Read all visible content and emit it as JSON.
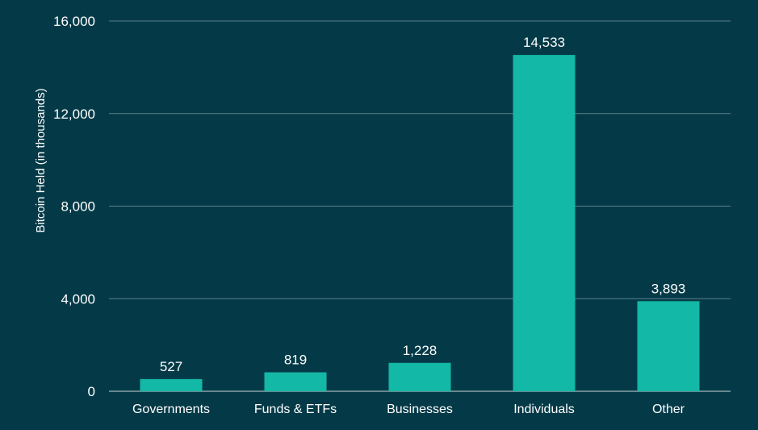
{
  "chart_data": {
    "type": "bar",
    "categories": [
      "Governments",
      "Funds & ETFs",
      "Businesses",
      "Individuals",
      "Other"
    ],
    "values": [
      527,
      819,
      1228,
      14533,
      3893
    ],
    "value_labels": [
      "527",
      "819",
      "1,228",
      "14,533",
      "3,893"
    ],
    "ylabel": "Bitcoin Held (in thousands)",
    "ylim": [
      0,
      16000
    ],
    "yticks": [
      0,
      4000,
      8000,
      12000,
      16000
    ],
    "ytick_labels": [
      "0",
      "4,000",
      "8,000",
      "12,000",
      "16,000"
    ],
    "grid": true,
    "legend": "none"
  },
  "colors": {
    "background": "#043a48",
    "bar": "#13b8a6",
    "grid": "#5d7e88",
    "text": "#ffffff"
  }
}
